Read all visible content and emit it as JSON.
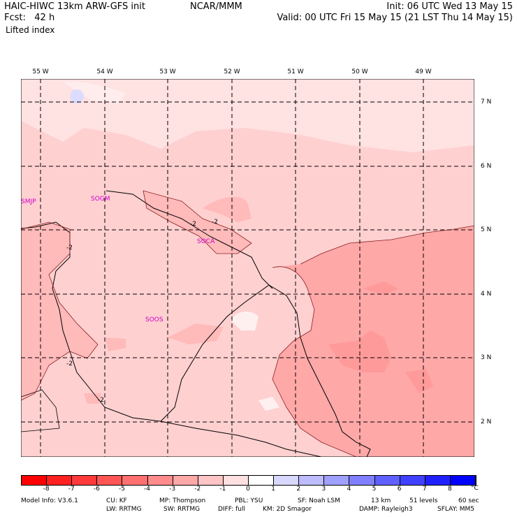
{
  "header": {
    "model": "HAIC-HIWC 13km ARW-GFS init",
    "org": "NCAR/MMM",
    "init": "Init: 06 UTC Wed 13 May 15",
    "fcst": "Fcst:   42 h",
    "valid": "Valid: 00 UTC Fri 15 May 15 (21 LST Thu 14 May 15)",
    "field": "Lifted index"
  },
  "map": {
    "lon_labels": [
      "55 W",
      "54 W",
      "53 W",
      "52 W",
      "51 W",
      "50 W",
      "49 W"
    ],
    "lat_labels": [
      "7 N",
      "6 N",
      "5 N",
      "4 N",
      "3 N",
      "2 N"
    ],
    "stations": [
      "SMJP",
      "SOCA",
      "SOOS"
    ],
    "station_tail": "SOGM",
    "contour_labels": [
      "-2",
      "-2",
      "-2",
      "-2",
      "-2",
      "-2"
    ]
  },
  "colorbar": {
    "ticks": [
      "-8",
      "-7",
      "-6",
      "-5",
      "-4",
      "-3",
      "-2",
      "-1",
      "0",
      "1",
      "2",
      "3",
      "4",
      "5",
      "6",
      "7",
      "8"
    ],
    "unit": "°C",
    "colors": [
      "#ff0000",
      "#ff2020",
      "#ff3a3a",
      "#ff5555",
      "#ff7070",
      "#ff8c8c",
      "#ffa8a8",
      "#ffc4c4",
      "#ffe0e0",
      "#ffffff",
      "#d8d8ff",
      "#bcbcff",
      "#a0a0ff",
      "#8080ff",
      "#6060ff",
      "#4040ff",
      "#2020ff",
      "#0000ff"
    ]
  },
  "footer": {
    "line1": [
      "Model Info: V3.6.1",
      "CU: KF",
      "MP: Thompson",
      "PBL: YSU",
      "SF: Noah LSM",
      "13 km",
      "51 levels",
      "60 sec"
    ],
    "line2": [
      "LW: RRTMG",
      "SW: RRTMG",
      "DIFF: full",
      "KM: 2D Smagor",
      "DAMP: Rayleigh3",
      "SFLAY: MM5"
    ]
  }
}
